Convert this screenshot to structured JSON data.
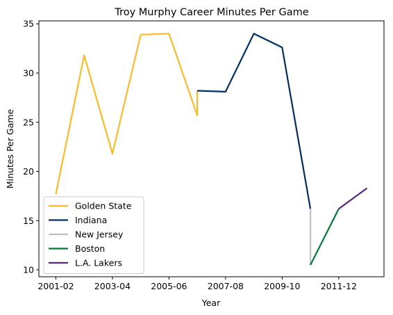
{
  "chart_data": {
    "type": "line",
    "title": "Troy Murphy Career Minutes Per Game",
    "xlabel": "Year",
    "ylabel": "Minutes Per Game",
    "xlim": [
      -0.6,
      11.6
    ],
    "ylim": [
      9.3,
      35.3
    ],
    "grid": false,
    "legend_position": "lower-left",
    "x_ticks": [
      {
        "value": 0,
        "label": "2001-02"
      },
      {
        "value": 2,
        "label": "2003-04"
      },
      {
        "value": 4,
        "label": "2005-06"
      },
      {
        "value": 6,
        "label": "2007-08"
      },
      {
        "value": 8,
        "label": "2009-10"
      },
      {
        "value": 10,
        "label": "2011-12"
      }
    ],
    "y_ticks": [
      {
        "value": 10,
        "label": "10"
      },
      {
        "value": 15,
        "label": "15"
      },
      {
        "value": 20,
        "label": "20"
      },
      {
        "value": 25,
        "label": "25"
      },
      {
        "value": 30,
        "label": "30"
      },
      {
        "value": 35,
        "label": "35"
      }
    ],
    "series": [
      {
        "name": "Golden State",
        "color": "#FDB927",
        "points": [
          [
            0,
            17.7
          ],
          [
            1,
            31.8
          ],
          [
            2,
            21.8
          ],
          [
            3,
            33.9
          ],
          [
            4,
            34.0
          ],
          [
            5,
            25.7
          ],
          [
            5,
            28.2
          ]
        ]
      },
      {
        "name": "Indiana",
        "color": "#002D62",
        "points": [
          [
            5,
            28.2
          ],
          [
            6,
            28.1
          ],
          [
            7,
            34.0
          ],
          [
            8,
            32.6
          ],
          [
            9,
            16.2
          ]
        ]
      },
      {
        "name": "New Jersey",
        "color": "#C0C0C0",
        "points": [
          [
            9,
            16.2
          ],
          [
            9,
            10.5
          ]
        ]
      },
      {
        "name": "Boston",
        "color": "#007A33",
        "points": [
          [
            9,
            10.5
          ],
          [
            10,
            16.2
          ]
        ]
      },
      {
        "name": "L.A. Lakers",
        "color": "#552583",
        "points": [
          [
            10,
            16.2
          ],
          [
            11,
            18.3
          ]
        ]
      }
    ]
  }
}
